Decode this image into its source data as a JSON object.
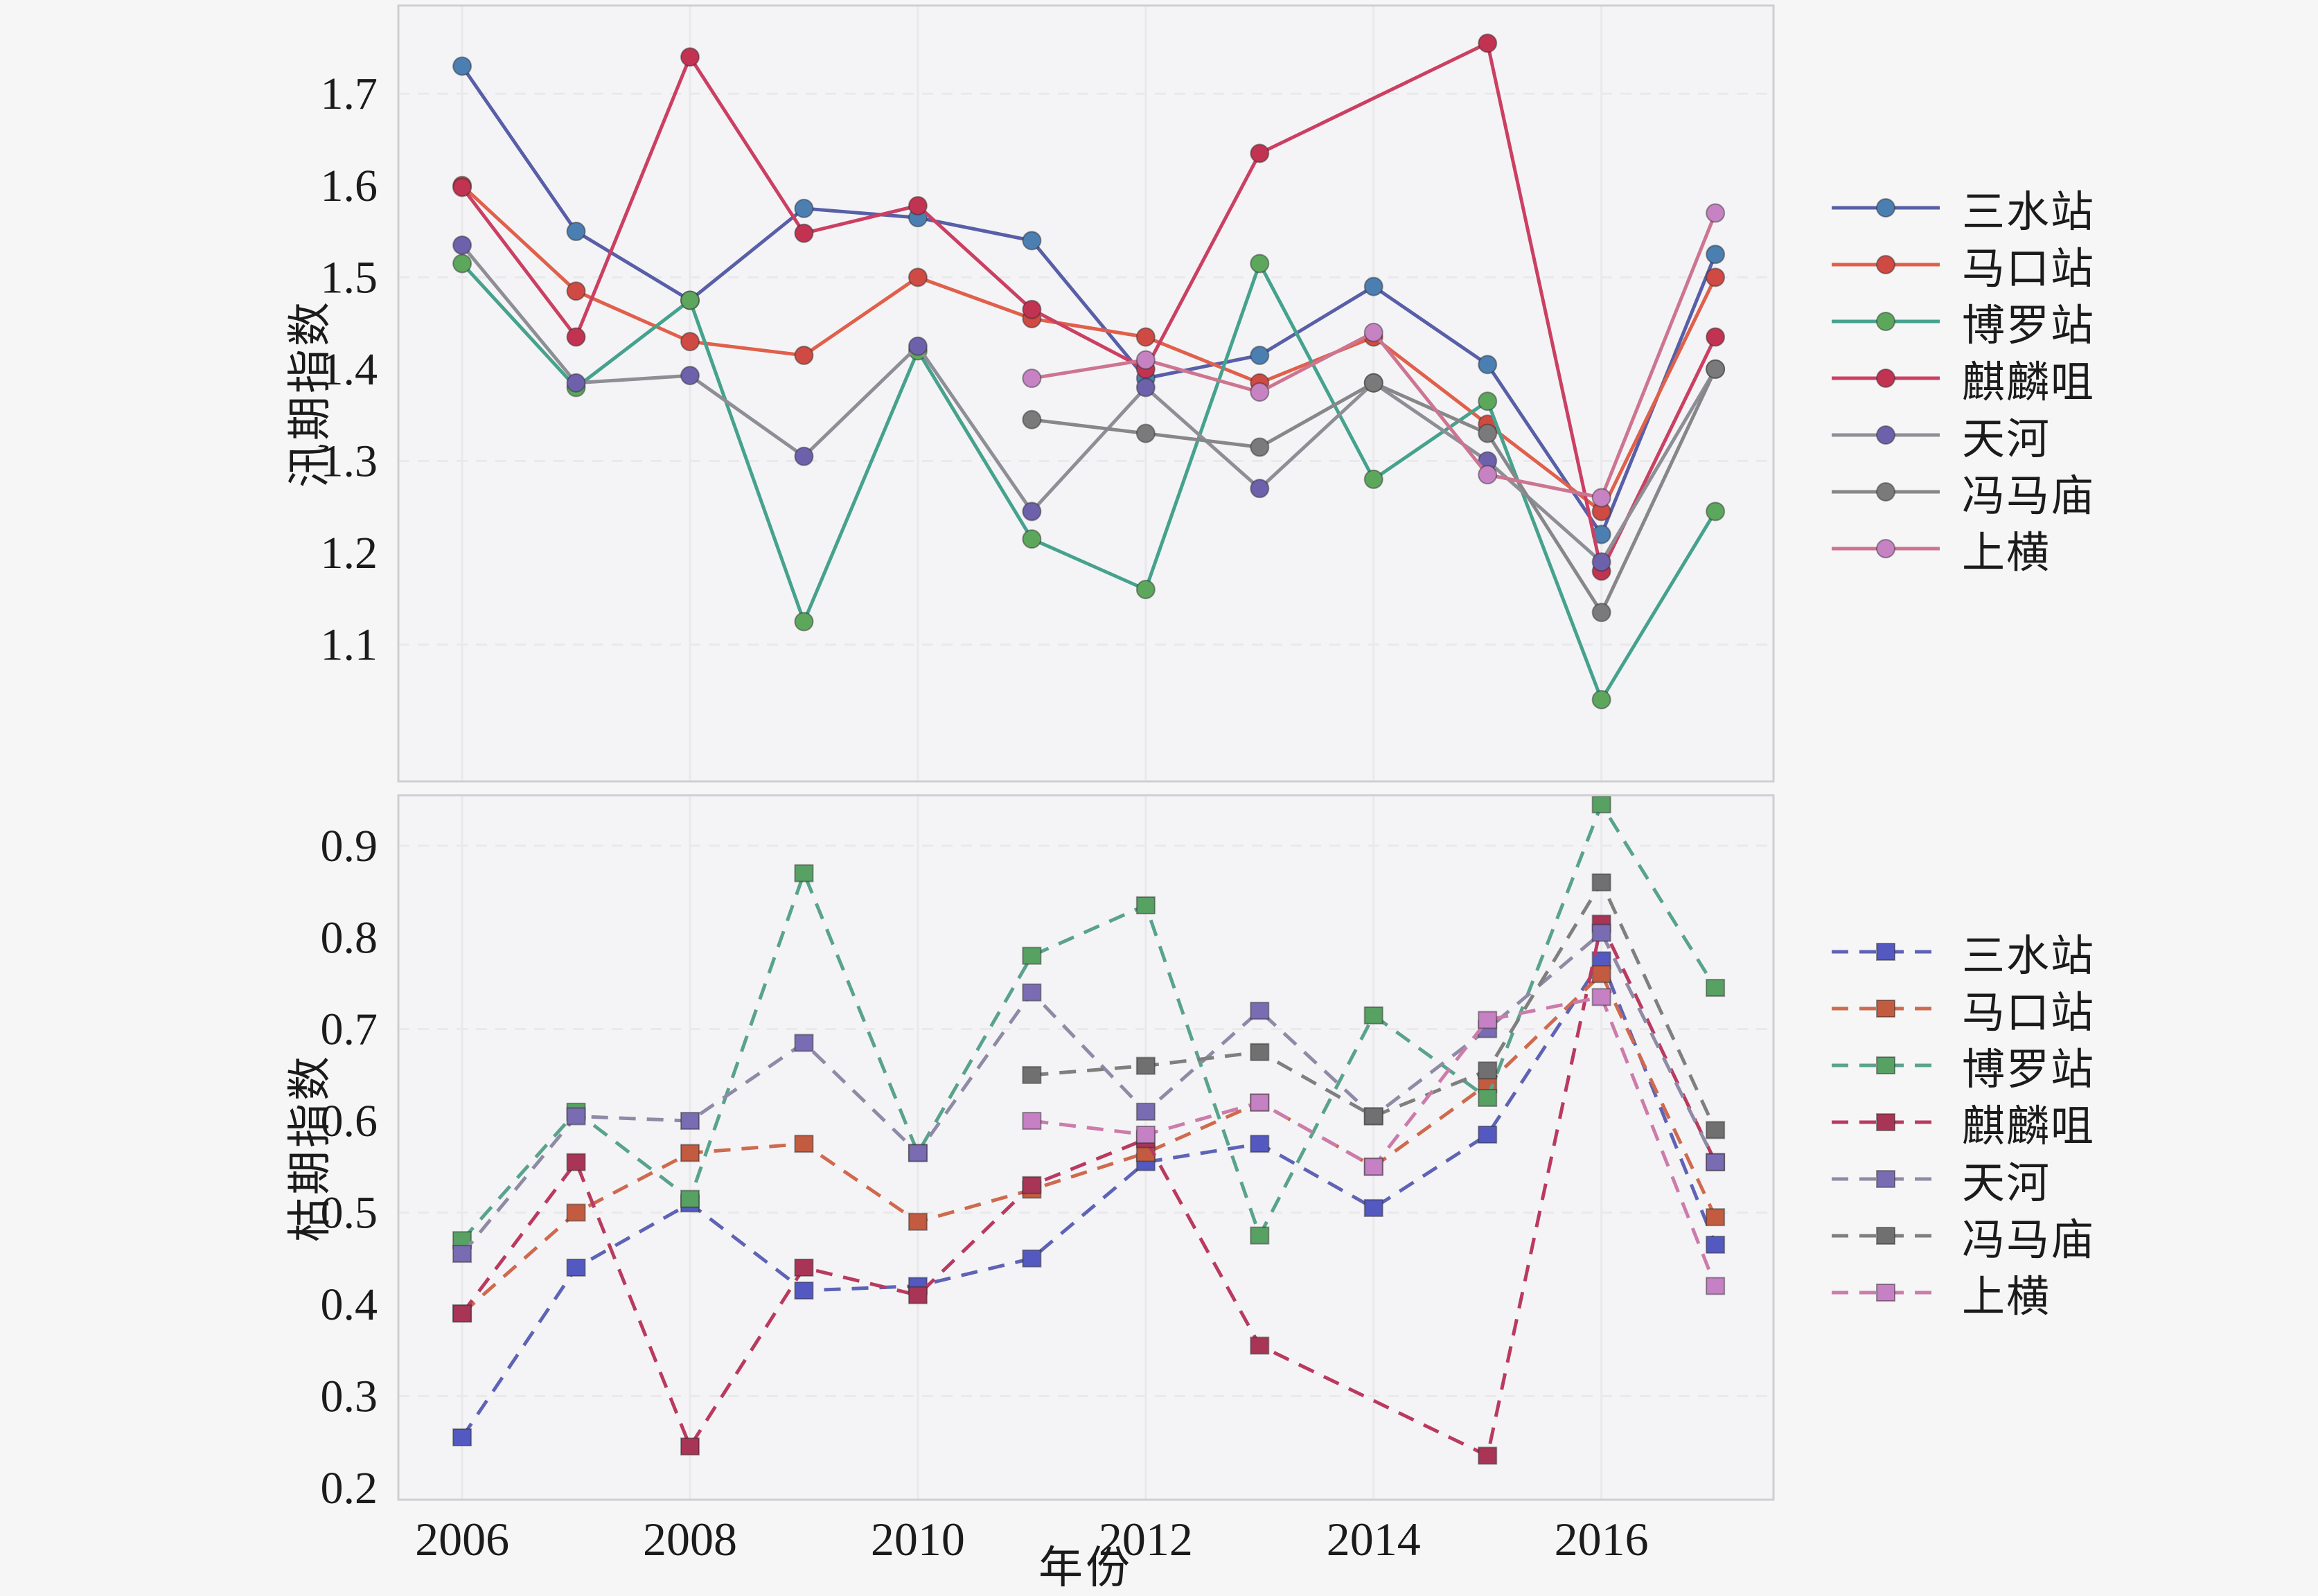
{
  "figure": {
    "background": "#f6f6f7",
    "panel_background": "#f4f4f6",
    "grid_color": "#e9e9ec",
    "spine_color": "#cfcfd3",
    "text_color": "#1b1b1b"
  },
  "chart_data": [
    {
      "type": "line",
      "title": "",
      "ylabel": "汛期指数",
      "xlabel": "",
      "line_style": "solid",
      "marker": "circle",
      "legend_position": "right",
      "grid": true,
      "x": [
        2006,
        2007,
        2008,
        2009,
        2010,
        2011,
        2012,
        2013,
        2014,
        2015,
        2016,
        2017
      ],
      "xlim": [
        2005.44,
        2017.51
      ],
      "ylim": [
        0.951,
        1.796
      ],
      "yticks": [
        1.1,
        1.2,
        1.3,
        1.4,
        1.5,
        1.6,
        1.7
      ],
      "ygridlines": [
        1.1,
        1.3,
        1.5,
        1.7
      ],
      "xgridlines": [
        2006,
        2008,
        2010,
        2012,
        2014,
        2016
      ],
      "xtick_labels": [],
      "series": [
        {
          "name": "三水站",
          "line_color": "#585fa8",
          "marker_color": "#4b7eb1",
          "values": [
            1.73,
            1.55,
            1.475,
            1.575,
            1.565,
            1.54,
            1.39,
            1.415,
            1.49,
            1.405,
            1.22,
            1.525
          ]
        },
        {
          "name": "马口站",
          "line_color": "#e0604b",
          "marker_color": "#ce4a43",
          "values": [
            1.6,
            1.485,
            1.43,
            1.415,
            1.5,
            1.455,
            1.435,
            1.385,
            1.435,
            1.34,
            1.245,
            1.5
          ]
        },
        {
          "name": "博罗站",
          "line_color": "#46a28d",
          "marker_color": "#5ca75c",
          "values": [
            1.515,
            1.38,
            1.475,
            1.125,
            1.42,
            1.215,
            1.16,
            1.515,
            1.28,
            1.365,
            1.04,
            1.245
          ]
        },
        {
          "name": "麒麟咀",
          "line_color": "#cb4062",
          "marker_color": "#c23351",
          "values": [
            1.598,
            1.435,
            1.74,
            1.548,
            1.578,
            1.465,
            1.4,
            1.635,
            null,
            1.755,
            1.18,
            1.435
          ]
        },
        {
          "name": "天河",
          "line_color": "#8e8e96",
          "marker_color": "#6d61ac",
          "values": [
            1.535,
            1.385,
            1.393,
            1.305,
            1.425,
            1.245,
            1.38,
            1.27,
            1.385,
            1.3,
            1.19,
            1.4
          ]
        },
        {
          "name": "冯马庙",
          "line_color": "#87878a",
          "marker_color": "#7a7a7a",
          "values": [
            null,
            null,
            null,
            null,
            null,
            1.345,
            1.33,
            1.315,
            1.385,
            1.33,
            1.135,
            1.4
          ]
        },
        {
          "name": "上横",
          "line_color": "#cd7590",
          "marker_color": "#c682c3",
          "values": [
            null,
            null,
            null,
            null,
            null,
            1.39,
            1.41,
            1.375,
            1.44,
            1.285,
            1.26,
            1.57
          ]
        }
      ]
    },
    {
      "type": "line",
      "title": "",
      "ylabel": "枯期指数",
      "xlabel": "年份",
      "line_style": "dashed",
      "marker": "square",
      "legend_position": "right",
      "grid": true,
      "x": [
        2006,
        2007,
        2008,
        2009,
        2010,
        2011,
        2012,
        2013,
        2014,
        2015,
        2016,
        2017
      ],
      "xlim": [
        2005.44,
        2017.51
      ],
      "ylim": [
        0.187,
        0.955
      ],
      "yticks": [
        0.2,
        0.3,
        0.4,
        0.5,
        0.6,
        0.7,
        0.8,
        0.9
      ],
      "ygridlines": [
        0.3,
        0.5,
        0.7,
        0.9
      ],
      "xgridlines": [
        2006,
        2008,
        2010,
        2012,
        2014,
        2016
      ],
      "xtick_labels": [
        "2006",
        "2008",
        "2010",
        "2012",
        "2014",
        "2016"
      ],
      "series": [
        {
          "name": "三水站",
          "line_color": "#5f63b5",
          "marker_color": "#5459c1",
          "values": [
            0.255,
            0.44,
            0.51,
            0.415,
            0.42,
            0.45,
            0.555,
            0.575,
            0.505,
            0.585,
            0.775,
            0.465
          ]
        },
        {
          "name": "马口站",
          "line_color": "#cf6a4e",
          "marker_color": "#c25b40",
          "values": [
            0.39,
            0.5,
            0.565,
            0.575,
            0.49,
            0.525,
            0.565,
            0.62,
            0.55,
            0.64,
            0.76,
            0.495
          ]
        },
        {
          "name": "博罗站",
          "line_color": "#59a38c",
          "marker_color": "#57a163",
          "values": [
            0.47,
            0.61,
            0.515,
            0.87,
            0.565,
            0.78,
            0.835,
            0.475,
            0.715,
            0.625,
            0.945,
            0.745
          ]
        },
        {
          "name": "麒麟咀",
          "line_color": "#ba3a5f",
          "marker_color": "#a93556",
          "values": [
            0.39,
            0.555,
            0.245,
            0.44,
            0.41,
            0.53,
            0.58,
            0.355,
            null,
            0.235,
            0.815,
            0.555
          ]
        },
        {
          "name": "天河",
          "line_color": "#8f8aa5",
          "marker_color": "#7a6cb3",
          "values": [
            0.455,
            0.605,
            0.6,
            0.685,
            0.565,
            0.74,
            0.61,
            0.72,
            0.605,
            0.7,
            0.805,
            0.555
          ]
        },
        {
          "name": "冯马庙",
          "line_color": "#7f7f7d",
          "marker_color": "#707070",
          "values": [
            null,
            null,
            null,
            null,
            null,
            0.65,
            0.66,
            0.675,
            0.605,
            0.655,
            0.86,
            0.59
          ]
        },
        {
          "name": "上横",
          "line_color": "#cc7cab",
          "marker_color": "#c680c4",
          "values": [
            null,
            null,
            null,
            null,
            null,
            0.6,
            0.585,
            0.62,
            0.55,
            0.71,
            0.735,
            0.42
          ]
        }
      ]
    }
  ]
}
